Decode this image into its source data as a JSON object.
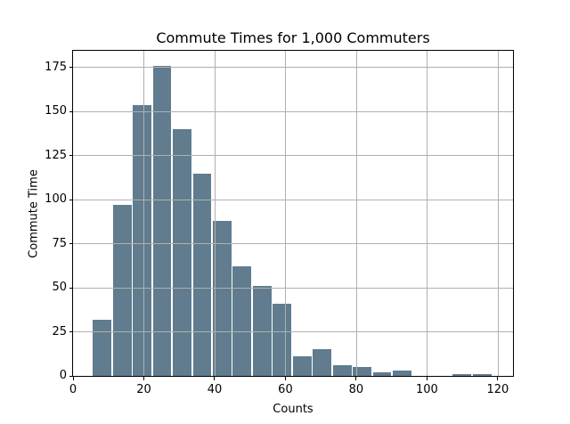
{
  "chart_data": {
    "type": "bar",
    "chart_kind": "histogram",
    "title": "Commute Times for 1,000 Commuters",
    "xlabel": "Counts",
    "ylabel": "Commute Time",
    "total": 1000,
    "bin_start": 5.4,
    "bin_width": 5.65,
    "counts": [
      32,
      97,
      154,
      176,
      140,
      115,
      88,
      62,
      51,
      41,
      11,
      15,
      6,
      5,
      2,
      3,
      0,
      0,
      1,
      1
    ],
    "xticks": [
      0,
      20,
      40,
      60,
      80,
      100,
      120
    ],
    "yticks": [
      0,
      25,
      50,
      75,
      100,
      125,
      150,
      175
    ],
    "xlim": [
      0,
      124.3
    ],
    "ylim": [
      0,
      184.6
    ],
    "grid": true,
    "grid_over_bars": true,
    "legend": null,
    "colors": {
      "bar": "#607c8e",
      "bar_edge": "#ffffff",
      "grid": "#b0b0b0",
      "spine": "#000000",
      "text": "#000000",
      "background": "#ffffff"
    }
  }
}
